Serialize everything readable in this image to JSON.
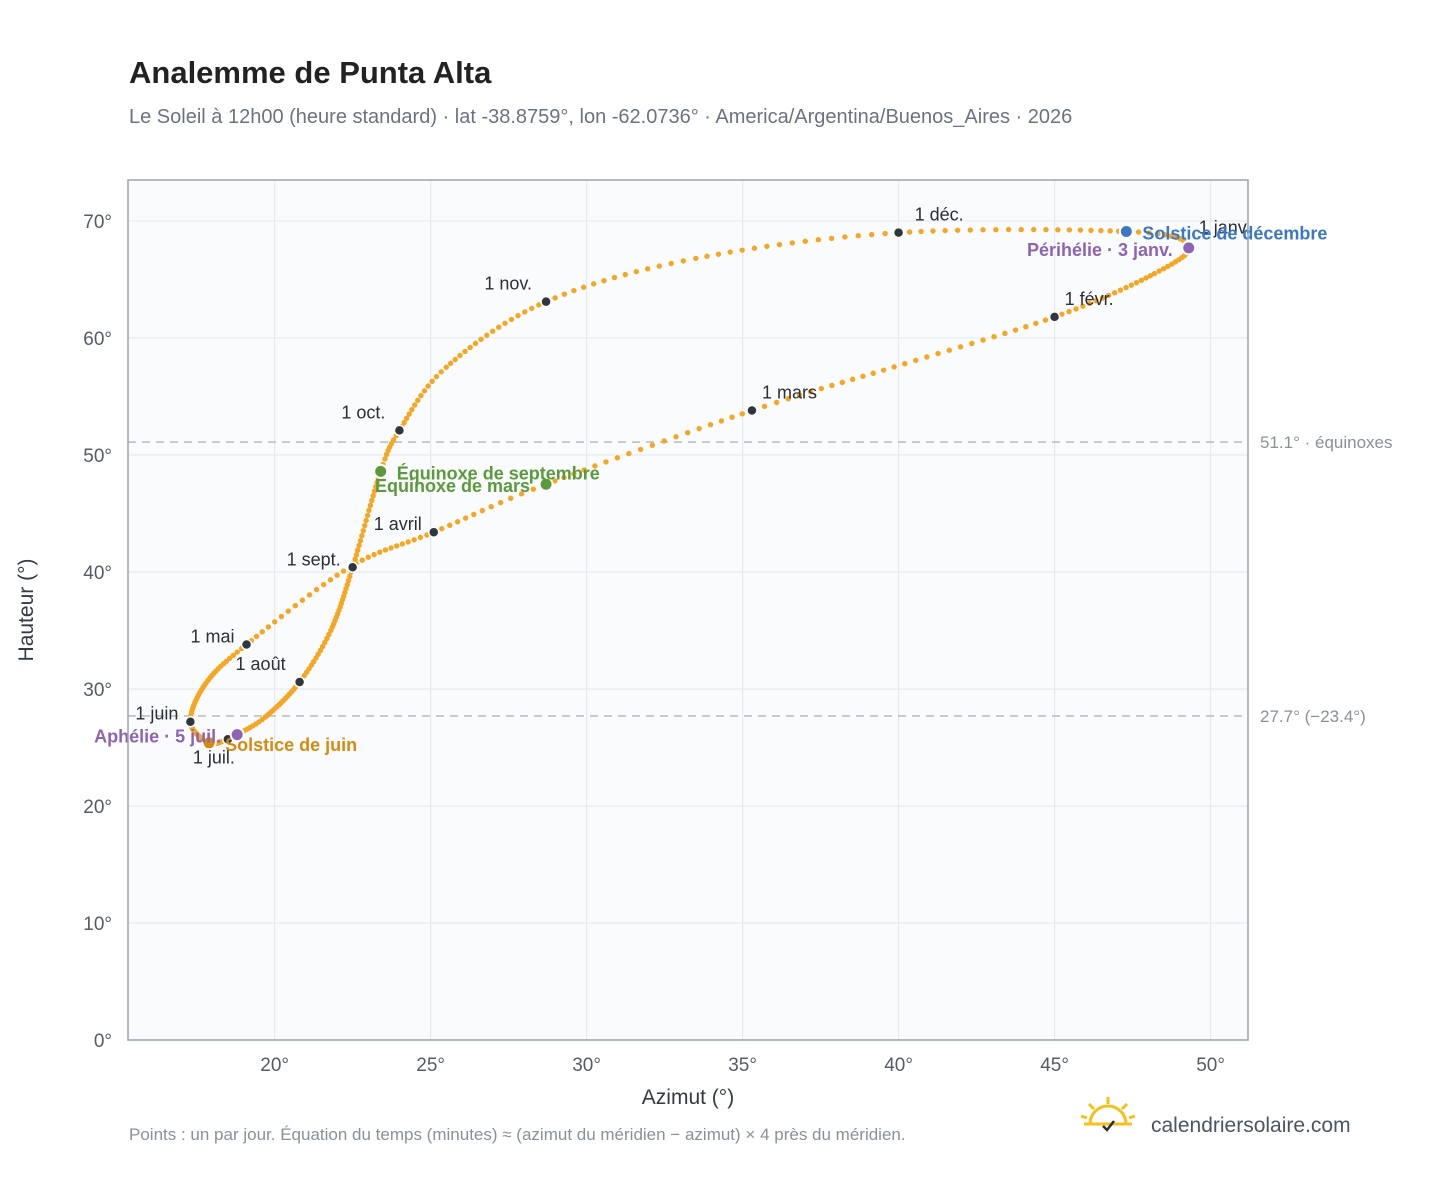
{
  "header": {
    "title": "Analemme de Punta Alta",
    "subtitle": "Le Soleil à 12h00 (heure standard) · lat -38.8759°, lon -62.0736° · America/Argentina/Buenos_Aires · 2026"
  },
  "footer": {
    "note": "Points : un par jour. Équation du temps (minutes) ≈ (azimut du méridien − azimut) × 4 près du méridien.",
    "brand": "calendriersolaire.com",
    "brand_icon": "sun-logo-icon"
  },
  "colors": {
    "curve": "#f5a623",
    "month_marker": "#2f3640",
    "equinox": "#5a9a3c",
    "june_solstice": "#d68a10",
    "december_solstice": "#3a78c3",
    "apsis": "#8e63b5",
    "plot_bg": "#f9fbfd",
    "grid": "#e6eaef",
    "frame": "#9aa3af",
    "ref_line": "#b8c0ca"
  },
  "chart_data": {
    "type": "scatter",
    "title": "Analemme de Punta Alta",
    "xlabel": "Azimut (°)",
    "ylabel": "Hauteur (°)",
    "xlim": [
      15.3,
      51.2
    ],
    "ylim": [
      0,
      73.5
    ],
    "x_ticks": [
      20,
      25,
      30,
      35,
      40,
      45,
      50
    ],
    "x_tick_labels": [
      "20°",
      "25°",
      "30°",
      "35°",
      "40°",
      "45°",
      "50°"
    ],
    "y_ticks": [
      0,
      10,
      20,
      30,
      40,
      50,
      60,
      70
    ],
    "y_tick_labels": [
      "0°",
      "10°",
      "20°",
      "30°",
      "40°",
      "50°",
      "60°",
      "70°"
    ],
    "grid": true,
    "reference_lines": [
      {
        "y": 51.1,
        "label": "51.1° · équinoxes"
      },
      {
        "y": 27.7,
        "label": "27.7° (−23.4°)"
      }
    ],
    "curve_series": {
      "name": "",
      "points_per": "day",
      "anchors": [
        {
          "date": "1 janv.",
          "azimuth": 49.3,
          "altitude": 67.9
        },
        {
          "date": "15 janv.",
          "azimuth": 48.2,
          "altitude": 65.5
        },
        {
          "date": "1 févr.",
          "azimuth": 45.0,
          "altitude": 61.8
        },
        {
          "date": "15 févr.",
          "azimuth": 40.2,
          "altitude": 57.8
        },
        {
          "date": "1 mars",
          "azimuth": 35.3,
          "altitude": 53.8
        },
        {
          "date": "20 mars",
          "azimuth": 28.7,
          "altitude": 47.5
        },
        {
          "date": "1 avril",
          "azimuth": 25.1,
          "altitude": 43.4
        },
        {
          "date": "15 avril",
          "azimuth": 22.4,
          "altitude": 40.4
        },
        {
          "date": "1 mai",
          "azimuth": 19.1,
          "altitude": 33.8
        },
        {
          "date": "15 mai",
          "azimuth": 17.8,
          "altitude": 30.5
        },
        {
          "date": "1 juin",
          "azimuth": 17.3,
          "altitude": 27.2
        },
        {
          "date": "21 juin",
          "azimuth": 17.9,
          "altitude": 25.4
        },
        {
          "date": "1 juil.",
          "azimuth": 18.5,
          "altitude": 25.7
        },
        {
          "date": "5 juil.",
          "azimuth": 18.8,
          "altitude": 26.1
        },
        {
          "date": "15 juil.",
          "azimuth": 19.7,
          "altitude": 27.6
        },
        {
          "date": "1 août",
          "azimuth": 20.8,
          "altitude": 30.6
        },
        {
          "date": "15 août",
          "azimuth": 21.8,
          "altitude": 35.0
        },
        {
          "date": "1 sept.",
          "azimuth": 22.5,
          "altitude": 40.4
        },
        {
          "date": "22 sept.",
          "azimuth": 23.4,
          "altitude": 48.6
        },
        {
          "date": "1 oct.",
          "azimuth": 24.0,
          "altitude": 52.1
        },
        {
          "date": "15 oct.",
          "azimuth": 25.5,
          "altitude": 57.5
        },
        {
          "date": "1 nov.",
          "azimuth": 28.7,
          "altitude": 63.1
        },
        {
          "date": "15 nov.",
          "azimuth": 33.5,
          "altitude": 66.8
        },
        {
          "date": "1 déc.",
          "azimuth": 40.0,
          "altitude": 69.0
        },
        {
          "date": "21 déc.",
          "azimuth": 47.3,
          "altitude": 69.1
        }
      ]
    },
    "month_markers": [
      {
        "label": "1 janv.",
        "azimuth": 49.3,
        "altitude": 67.9,
        "label_pos": "right"
      },
      {
        "label": "1 févr.",
        "azimuth": 45.0,
        "altitude": 61.8,
        "label_pos": "right"
      },
      {
        "label": "1 mars",
        "azimuth": 35.3,
        "altitude": 53.8,
        "label_pos": "right"
      },
      {
        "label": "1 avril",
        "azimuth": 25.1,
        "altitude": 43.4,
        "label_pos": "below-left"
      },
      {
        "label": "1 mai",
        "azimuth": 19.1,
        "altitude": 33.8,
        "label_pos": "below-left"
      },
      {
        "label": "1 juin",
        "azimuth": 17.3,
        "altitude": 27.2,
        "label_pos": "below-left"
      },
      {
        "label": "1 juil.",
        "azimuth": 18.5,
        "altitude": 25.7,
        "label_pos": "below"
      },
      {
        "label": "1 août",
        "azimuth": 20.8,
        "altitude": 30.6,
        "label_pos": "above-left"
      },
      {
        "label": "1 sept.",
        "azimuth": 22.5,
        "altitude": 40.4,
        "label_pos": "below-left"
      },
      {
        "label": "1 oct.",
        "azimuth": 24.0,
        "altitude": 52.1,
        "label_pos": "above-left"
      },
      {
        "label": "1 nov.",
        "azimuth": 28.7,
        "altitude": 63.1,
        "label_pos": "above-left"
      },
      {
        "label": "1 déc.",
        "azimuth": 40.0,
        "altitude": 69.0,
        "label_pos": "above-right"
      }
    ],
    "events": [
      {
        "label": "Équinoxe de mars",
        "azimuth": 28.7,
        "altitude": 47.5,
        "color_key": "equinox",
        "label_pos": "left"
      },
      {
        "label": "Équinoxe de septembre",
        "azimuth": 23.4,
        "altitude": 48.6,
        "color_key": "equinox",
        "label_pos": "right"
      },
      {
        "label": "Solstice de juin",
        "azimuth": 17.9,
        "altitude": 25.4,
        "color_key": "june_solstice",
        "label_pos": "right"
      },
      {
        "label": "Solstice de décembre",
        "azimuth": 47.3,
        "altitude": 69.1,
        "color_key": "december_solstice",
        "label_pos": "right"
      },
      {
        "label": "Aphélie · 5 juil.",
        "azimuth": 18.8,
        "altitude": 26.1,
        "color_key": "apsis",
        "label_pos": "left"
      },
      {
        "label": "Périhélie · 3 janv.",
        "azimuth": 49.3,
        "altitude": 67.7,
        "color_key": "apsis",
        "label_pos": "left"
      }
    ]
  }
}
